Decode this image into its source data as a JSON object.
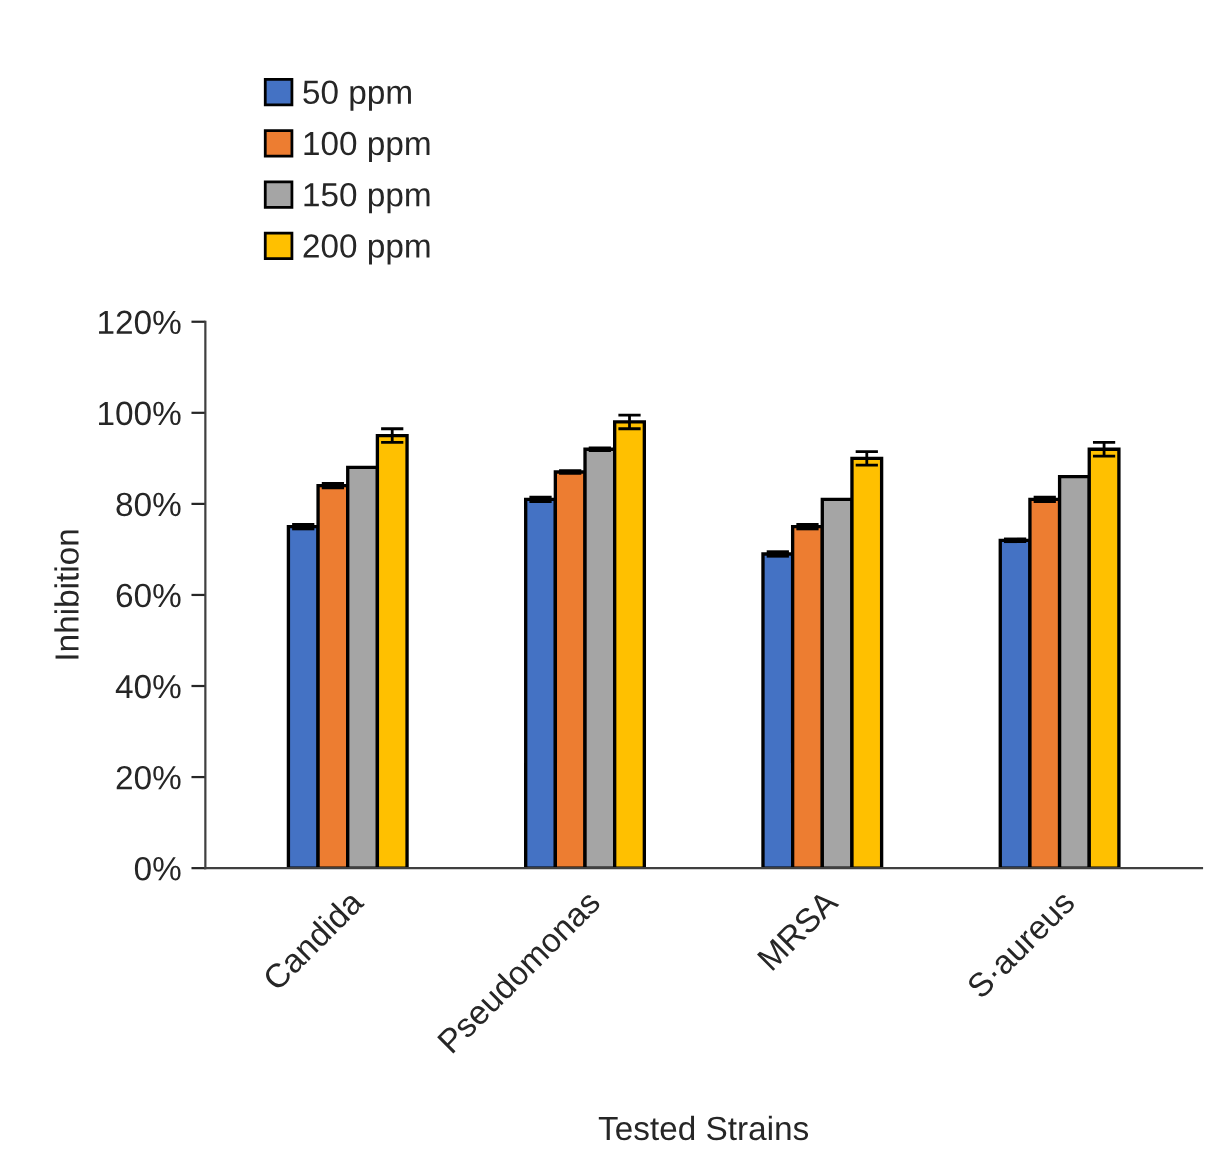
{
  "chart_data": {
    "type": "bar",
    "xlabel": "Tested Strains",
    "ylabel": "Inhibition",
    "categories": [
      "Candida",
      "Pseudomonas",
      "MRSA",
      "S·aureus"
    ],
    "series": [
      {
        "name": "50 ppm",
        "color": "#4472c4",
        "values": [
          75,
          81,
          69,
          72
        ],
        "errors": [
          0.5,
          0.5,
          0.5,
          0.3
        ]
      },
      {
        "name": "100 ppm",
        "color": "#ed7d31",
        "values": [
          84,
          87,
          75,
          81
        ],
        "errors": [
          0.5,
          0.3,
          0.5,
          0.5
        ]
      },
      {
        "name": "150 ppm",
        "color": "#a5a5a5",
        "values": [
          88,
          92,
          81,
          86
        ],
        "errors": [
          null,
          0.3,
          null,
          null
        ]
      },
      {
        "name": "200 ppm",
        "color": "#ffc000",
        "values": [
          95,
          98,
          90,
          92
        ],
        "errors": [
          1.5,
          1.5,
          1.5,
          1.5
        ]
      }
    ],
    "ylim": [
      0,
      120
    ],
    "yticks": [
      {
        "value": 0,
        "label": "0%"
      },
      {
        "value": 20,
        "label": "20%"
      },
      {
        "value": 40,
        "label": "40%"
      },
      {
        "value": 60,
        "label": "60%"
      },
      {
        "value": 80,
        "label": "80%"
      },
      {
        "value": 100,
        "label": "100%"
      },
      {
        "value": 120,
        "label": "120%"
      }
    ],
    "grid": false,
    "legend": "top"
  }
}
